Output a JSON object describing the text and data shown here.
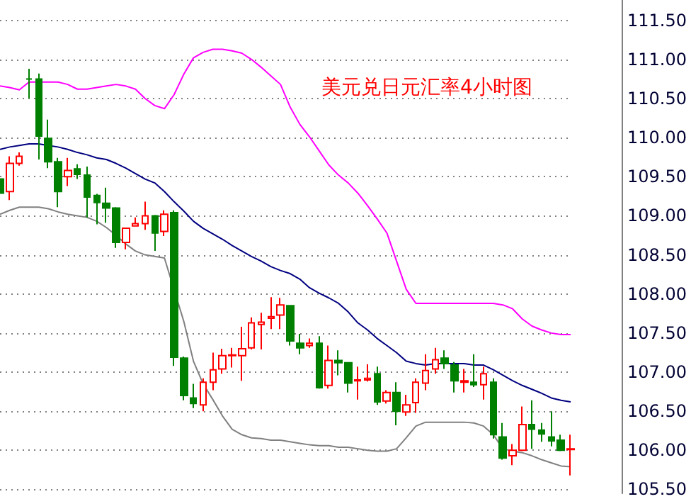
{
  "chart_data": {
    "type": "candlestick",
    "title": "美元兑日元汇率4小时图",
    "categories": [
      null,
      null,
      null,
      null,
      null,
      null,
      null,
      null,
      null,
      null,
      null,
      null,
      null,
      null,
      null,
      null,
      null,
      null,
      null,
      null,
      null,
      null,
      null,
      null,
      null,
      null,
      null,
      null,
      null,
      null,
      null,
      null,
      null,
      null,
      null,
      null,
      null,
      null,
      null,
      null,
      null,
      null,
      null,
      null,
      null,
      null,
      null,
      null,
      null,
      null,
      null,
      null,
      null,
      null,
      null,
      null,
      null,
      null,
      null,
      null
    ],
    "ylim": [
      105.45,
      111.76
    ],
    "yticks": [
      {
        "value": 105.5,
        "label": "105.50"
      },
      {
        "value": 106,
        "label": "106.00"
      },
      {
        "value": 106.5,
        "label": "106.50"
      },
      {
        "value": 107,
        "label": "107.00"
      },
      {
        "value": 107.5,
        "label": "107.50"
      },
      {
        "value": 108,
        "label": "108.00"
      },
      {
        "value": 108.5,
        "label": "108.50"
      },
      {
        "value": 109,
        "label": "109.00"
      },
      {
        "value": 109.5,
        "label": "109.50"
      },
      {
        "value": 110,
        "label": "110.00"
      },
      {
        "value": 110.5,
        "label": "110.50"
      },
      {
        "value": 111,
        "label": "111.00"
      },
      {
        "value": 111.5,
        "label": "111.50"
      }
    ],
    "grid": "y",
    "tick_labels": "y",
    "series": [
      {
        "type": "line",
        "color": "#ff00ff",
        "values": [
          110.66,
          110.64,
          110.61,
          110.71,
          110.71,
          110.71,
          110.71,
          110.68,
          110.62,
          110.62,
          110.64,
          110.66,
          110.68,
          110.66,
          110.62,
          110.5,
          110.41,
          110.37,
          110.55,
          110.81,
          111.02,
          111.09,
          111.13,
          111.13,
          111.11,
          111.08,
          111.0,
          110.9,
          110.79,
          110.68,
          110.39,
          110.17,
          110.01,
          109.83,
          109.65,
          109.52,
          109.42,
          109.29,
          109.13,
          108.96,
          108.78,
          108.42,
          108.06,
          107.88,
          107.88,
          107.88,
          107.88,
          107.88,
          107.88,
          107.88,
          107.88,
          107.88,
          107.86,
          107.81,
          107.68,
          107.59,
          107.54,
          107.5,
          107.48,
          107.48
        ]
      },
      {
        "type": "line",
        "color": "#000080",
        "values": [
          109.85,
          109.88,
          109.9,
          109.92,
          109.92,
          109.9,
          109.88,
          109.85,
          109.81,
          109.78,
          109.74,
          109.72,
          109.67,
          109.61,
          109.54,
          109.47,
          109.42,
          109.31,
          109.18,
          109.06,
          108.93,
          108.84,
          108.77,
          108.7,
          108.62,
          108.55,
          108.48,
          108.42,
          108.35,
          108.3,
          108.26,
          108.19,
          108.08,
          108.01,
          107.95,
          107.88,
          107.77,
          107.63,
          107.54,
          107.43,
          107.34,
          107.25,
          107.14,
          107.11,
          107.09,
          107.11,
          107.11,
          107.11,
          107.11,
          107.09,
          107.09,
          107.03,
          106.96,
          106.89,
          106.83,
          106.78,
          106.73,
          106.67,
          106.64,
          106.62
        ]
      },
      {
        "type": "line",
        "color": "#808080",
        "values": [
          109.02,
          109.07,
          109.11,
          109.11,
          109.11,
          109.09,
          109.05,
          109.02,
          109.0,
          108.98,
          108.93,
          108.85,
          108.75,
          108.64,
          108.55,
          108.5,
          108.48,
          108.46,
          null,
          107.65,
          107.14,
          106.85,
          106.65,
          106.44,
          106.27,
          106.2,
          106.16,
          106.15,
          106.13,
          106.13,
          106.11,
          106.09,
          106.07,
          106.06,
          106.06,
          106.04,
          106.04,
          106.02,
          106.0,
          105.99,
          105.99,
          106.02,
          106.16,
          106.31,
          106.36,
          106.36,
          106.36,
          106.36,
          106.36,
          106.35,
          106.31,
          106.2,
          106.02,
          105.99,
          105.97,
          105.93,
          105.88,
          105.84,
          105.8,
          105.79
        ]
      },
      {
        "type": "candlestick",
        "colors": [
          "#008000",
          "#ff0000",
          "#ff0000",
          "#008000",
          "#008000",
          "#008000",
          "#008000",
          "#ff0000",
          "#008000",
          "#008000",
          "#008000",
          "#008000",
          "#008000",
          "#ff0000",
          "#ff0000",
          "#ff0000",
          "#008000",
          "#ff0000",
          "#008000",
          "#008000",
          "#008000",
          "#ff0000",
          "#ff0000",
          "#ff0000",
          "#ff0000",
          "#ff0000",
          "#ff0000",
          "#ff0000",
          "#ff0000",
          "#ff0000",
          "#008000",
          "#008000",
          "#ff0000",
          "#008000",
          "#ff0000",
          "#008000",
          "#008000",
          "#ff0000",
          "#ff0000",
          "#008000",
          "#ff0000",
          "#008000",
          "#ff0000",
          "#ff0000",
          "#ff0000",
          "#ff0000",
          "#008000",
          "#008000",
          "#ff0000",
          "#008000",
          "#ff0000",
          "#008000",
          "#008000",
          "#ff0000",
          "#ff0000",
          "#008000",
          "#008000",
          "#008000",
          "#008000",
          "#ff0000"
        ],
        "ohlc": [
          [
            109.47,
            109.5,
            109.25,
            109.29
          ],
          [
            109.31,
            109.76,
            109.2,
            109.67
          ],
          [
            109.67,
            109.81,
            109.64,
            109.76
          ],
          [
            110.75,
            110.88,
            110.5,
            110.75
          ],
          [
            110.75,
            110.82,
            109.72,
            110.02
          ],
          [
            109.99,
            110.23,
            109.61,
            109.69
          ],
          [
            109.69,
            109.74,
            109.11,
            109.31
          ],
          [
            109.5,
            109.74,
            109.38,
            109.58
          ],
          [
            109.6,
            109.66,
            109.47,
            109.53
          ],
          [
            109.52,
            109.63,
            108.98,
            109.24
          ],
          [
            109.26,
            109.28,
            108.89,
            109.17
          ],
          [
            109.16,
            109.36,
            108.91,
            109.1
          ],
          [
            109.1,
            109.11,
            108.59,
            108.66
          ],
          [
            108.66,
            108.84,
            108.57,
            108.84
          ],
          [
            108.87,
            108.98,
            108.86,
            108.9
          ],
          [
            108.9,
            109.18,
            108.82,
            109.0
          ],
          [
            109.0,
            109.01,
            108.55,
            108.78
          ],
          [
            108.8,
            109.07,
            108.74,
            109.02
          ],
          [
            109.04,
            109.07,
            107.08,
            107.19
          ],
          [
            107.18,
            107.2,
            106.64,
            106.7
          ],
          [
            106.67,
            106.85,
            106.54,
            106.6
          ],
          [
            106.58,
            106.92,
            106.5,
            106.87
          ],
          [
            106.87,
            107.25,
            106.77,
            107.03
          ],
          [
            107.04,
            107.3,
            106.98,
            107.21
          ],
          [
            107.21,
            107.31,
            107.06,
            107.22
          ],
          [
            107.21,
            107.58,
            106.89,
            107.3
          ],
          [
            107.31,
            107.7,
            107.29,
            107.63
          ],
          [
            107.61,
            107.76,
            107.29,
            107.64
          ],
          [
            107.69,
            107.96,
            107.55,
            107.71
          ],
          [
            107.73,
            107.95,
            107.55,
            107.86
          ],
          [
            107.85,
            107.86,
            107.34,
            107.4
          ],
          [
            107.37,
            107.49,
            107.23,
            107.31
          ],
          [
            107.34,
            107.43,
            107.31,
            107.37
          ],
          [
            107.37,
            107.46,
            106.79,
            106.8
          ],
          [
            106.83,
            107.34,
            106.79,
            107.15
          ],
          [
            107.15,
            107.28,
            106.96,
            107.12
          ],
          [
            107.12,
            107.13,
            106.74,
            106.86
          ],
          [
            106.89,
            107.07,
            106.65,
            106.9
          ],
          [
            106.9,
            107.1,
            106.88,
            106.92
          ],
          [
            106.98,
            107.07,
            106.58,
            106.62
          ],
          [
            106.63,
            106.77,
            106.6,
            106.74
          ],
          [
            106.74,
            106.87,
            106.32,
            106.5
          ],
          [
            106.49,
            106.71,
            106.44,
            106.58
          ],
          [
            106.61,
            106.92,
            106.48,
            106.87
          ],
          [
            106.86,
            107.23,
            106.77,
            107.02
          ],
          [
            107.04,
            107.31,
            106.98,
            107.16
          ],
          [
            107.18,
            107.28,
            107.04,
            107.11
          ],
          [
            107.09,
            107.13,
            106.74,
            106.89
          ],
          [
            106.87,
            107.04,
            106.74,
            106.89
          ],
          [
            106.87,
            107.23,
            106.81,
            106.84
          ],
          [
            106.84,
            107.07,
            106.65,
            106.98
          ],
          [
            106.87,
            106.92,
            106.15,
            106.2
          ],
          [
            106.17,
            106.35,
            105.88,
            105.9
          ],
          [
            105.93,
            106.08,
            105.81,
            106.0
          ],
          [
            106.0,
            106.56,
            105.99,
            106.33
          ],
          [
            106.33,
            106.64,
            106.02,
            106.27
          ],
          [
            106.26,
            106.35,
            106.11,
            106.21
          ],
          [
            106.17,
            106.5,
            106.05,
            106.12
          ],
          [
            106.13,
            106.2,
            105.99,
            106.0
          ],
          [
            106.01,
            106.2,
            105.68,
            106.02
          ]
        ]
      }
    ]
  }
}
